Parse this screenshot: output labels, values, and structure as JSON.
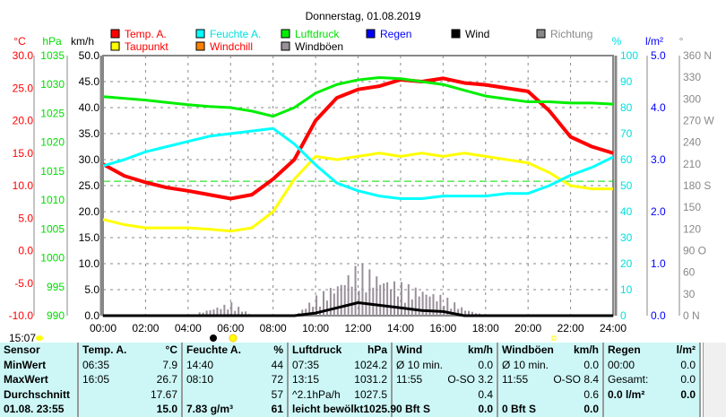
{
  "chart_data": {
    "type": "line",
    "title": "Donnerstag, 01.08.2019",
    "x_labels": [
      "00:00",
      "02:00",
      "04:00",
      "06:00",
      "08:00",
      "10:00",
      "12:00",
      "14:00",
      "16:00",
      "18:00",
      "20:00",
      "22:00",
      "24:00"
    ],
    "hours": [
      0,
      1,
      2,
      3,
      4,
      5,
      6,
      7,
      8,
      9,
      10,
      11,
      12,
      13,
      14,
      15,
      16,
      17,
      18,
      19,
      20,
      21,
      22,
      23,
      24
    ],
    "legend": [
      {
        "name": "Temp. A.",
        "color": "#ff0000",
        "text_color": "#ff0000"
      },
      {
        "name": "Feuchte A.",
        "color": "#00ffff",
        "text_color": "#00e0e0"
      },
      {
        "name": "Luftdruck",
        "color": "#00ee00",
        "text_color": "#00dd00"
      },
      {
        "name": "Regen",
        "color": "#0000ff",
        "text_color": "#0000ff"
      },
      {
        "name": "Wind",
        "color": "#000000",
        "text_color": "#000000"
      },
      {
        "name": "Richtung",
        "color": "#888888",
        "text_color": "#888888"
      },
      {
        "name": "Taupunkt",
        "color": "#ffff00",
        "text_color": "#ff0000"
      },
      {
        "name": "Windchill",
        "color": "#ff8000",
        "text_color": "#ff0000"
      },
      {
        "name": "Windböen",
        "color": "#999099",
        "text_color": "#000000"
      }
    ],
    "axes": {
      "temp": {
        "unit": "°C",
        "range": [
          -10,
          30
        ],
        "ticks": [
          "30.0",
          "25.0",
          "20.0",
          "15.0",
          "10.0",
          "5.0",
          "0.0",
          "-5.0",
          "-10.0"
        ]
      },
      "pressure": {
        "unit": "hPa",
        "range": [
          990,
          1035
        ],
        "ticks": [
          "1035",
          "1030",
          "1025",
          "1020",
          "1015",
          "1010",
          "1005",
          "1000",
          "995",
          "990"
        ]
      },
      "wind": {
        "unit": "km/h",
        "range": [
          0,
          50
        ],
        "ticks": [
          "50.0",
          "45.0",
          "40.0",
          "35.0",
          "30.0",
          "25.0",
          "20.0",
          "15.0",
          "10.0",
          "5.0",
          "0.0"
        ]
      },
      "humidity": {
        "unit": "%",
        "range": [
          0,
          100
        ],
        "ticks": [
          "100",
          "90",
          "80",
          "70",
          "60",
          "50",
          "40",
          "30",
          "20",
          "10",
          "0"
        ]
      },
      "rain": {
        "unit": "l/m²",
        "range": [
          0,
          5
        ],
        "ticks": [
          "5.0",
          "4.0",
          "3.0",
          "2.0",
          "1.0",
          "0.0"
        ]
      },
      "direction": {
        "unit": "°",
        "range": [
          0,
          360
        ],
        "ticks": [
          "360 N",
          "330",
          "300",
          "270 W",
          "240",
          "210",
          "180 S",
          "150",
          "120",
          "90  O",
          "60",
          "30",
          "0    N"
        ]
      }
    },
    "series": [
      {
        "name": "Temp. A.",
        "axis": "temp",
        "values": [
          13.3,
          11.5,
          10.5,
          9.7,
          9.2,
          8.6,
          8.0,
          8.6,
          11,
          14,
          20,
          23.5,
          24.8,
          25.3,
          26.3,
          26,
          26.5,
          25.8,
          25.5,
          25,
          24.5,
          21.5,
          17.5,
          16,
          15
        ]
      },
      {
        "name": "Taupunkt",
        "axis": "temp",
        "values": [
          4.8,
          4,
          3.5,
          3.5,
          3.5,
          3.3,
          3,
          3.5,
          6,
          11,
          14.5,
          14,
          14.5,
          15,
          14.5,
          15,
          14.5,
          15,
          14.5,
          14,
          13.5,
          12,
          10,
          9.5,
          9.5
        ]
      },
      {
        "name": "Feuchte A.",
        "axis": "humidity",
        "values": [
          57.6,
          60,
          63,
          65,
          67,
          69,
          70,
          71,
          72,
          66,
          58,
          51,
          48,
          46,
          45,
          45,
          46,
          46,
          46,
          47,
          47,
          50,
          54,
          57,
          61
        ]
      },
      {
        "name": "Luftdruck",
        "axis": "pressure",
        "values": [
          1027.9,
          1027.6,
          1027.3,
          1026.9,
          1026.5,
          1026.2,
          1026,
          1025.4,
          1024.5,
          1026,
          1028.5,
          1030,
          1030.8,
          1031.2,
          1031,
          1030.5,
          1030,
          1029,
          1028,
          1027.5,
          1027,
          1027,
          1026.8,
          1026.8,
          1026.6
        ]
      },
      {
        "name": "Wind",
        "axis": "wind",
        "values": [
          0,
          0,
          0,
          0,
          0,
          0,
          0,
          0,
          0,
          0,
          0.5,
          1.5,
          2.5,
          2,
          1.5,
          1,
          0.8,
          0,
          0,
          0,
          0,
          0,
          0,
          0,
          0
        ]
      },
      {
        "name": "Windböen",
        "axis": "wind",
        "values": [
          0,
          0,
          0,
          0,
          0,
          1,
          2,
          0,
          0,
          0,
          3,
          5,
          8,
          6,
          5,
          4,
          3,
          1,
          0,
          0,
          0,
          0,
          0,
          0,
          0
        ]
      }
    ],
    "reference_line": {
      "name": "1013.25 hPa",
      "value": 1013.25
    },
    "markers": {
      "moon": "06:00",
      "sun": "06:10",
      "sunset": "21:00"
    }
  },
  "status_time": "15:07",
  "table": {
    "headers": [
      [
        "Sensor"
      ],
      [
        "Temp. A.",
        "°C"
      ],
      [
        "Feuchte A.",
        "%"
      ],
      [
        "Luftdruck",
        "hPa"
      ],
      [
        "Wind",
        "km/h"
      ],
      [
        "Windböen",
        "km/h"
      ],
      [
        "Regen",
        "l/m²"
      ]
    ],
    "rows": [
      [
        [
          "MinWert"
        ],
        [
          "06:35",
          "7.9"
        ],
        [
          "14:40",
          "44"
        ],
        [
          "07:35",
          "1024.2"
        ],
        [
          "Ø 10 min.",
          "0.0"
        ],
        [
          "Ø 10 min.",
          "0.0"
        ],
        [
          "",
          ""
        ]
      ],
      [
        [
          "MaxWert"
        ],
        [
          "16:05",
          "26.7"
        ],
        [
          "08:10",
          "72"
        ],
        [
          "13:15",
          "1031.2"
        ],
        [
          "11:55",
          "O-SO 3.2"
        ],
        [
          "11:55",
          "O-SO 8.4"
        ],
        [
          "00:00",
          "0.0"
        ]
      ],
      [
        [
          "Durchschnitt"
        ],
        [
          "",
          "17.67"
        ],
        [
          "",
          "57"
        ],
        [
          "^2.1hPa/h",
          "1027.5"
        ],
        [
          "",
          "0.4"
        ],
        [
          "",
          "0.6"
        ],
        [
          "Gesamt:",
          "0.0"
        ]
      ],
      [
        [
          "01.08. 23:55"
        ],
        [
          "",
          "15.0"
        ],
        [
          "7.83 g/m³",
          "61"
        ],
        [
          "leicht bewölkt",
          "1025.9"
        ],
        [
          "0 Bft S",
          "0.0"
        ],
        [
          "0 Bft S",
          "0.0"
        ],
        [
          "0.0 l/m²",
          "0.0"
        ]
      ]
    ]
  }
}
